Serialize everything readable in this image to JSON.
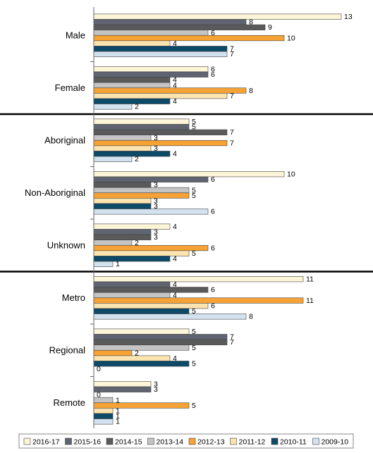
{
  "chart_data": {
    "type": "bar",
    "orientation": "horizontal",
    "xlim": [
      0,
      13
    ],
    "grid": false,
    "legend_position": "bottom",
    "categories": [
      "Male",
      "Female",
      "Aboriginal",
      "Non-Aboriginal",
      "Unknown",
      "Metro",
      "Regional",
      "Remote"
    ],
    "group_breaks_after": [
      "Female",
      "Unknown"
    ],
    "series": [
      {
        "name": "2016-17",
        "color": "#fdf5d8",
        "values": [
          13,
          6,
          5,
          10,
          4,
          11,
          5,
          3
        ]
      },
      {
        "name": "2015-16",
        "color": "#5f6470",
        "values": [
          8,
          6,
          5,
          6,
          3,
          4,
          7,
          3
        ]
      },
      {
        "name": "2014-15",
        "color": "#5a5a5a",
        "values": [
          9,
          4,
          7,
          3,
          3,
          6,
          7,
          0
        ]
      },
      {
        "name": "2013-14",
        "color": "#c4c4c4",
        "values": [
          6,
          4,
          3,
          5,
          2,
          4,
          5,
          1
        ]
      },
      {
        "name": "2012-13",
        "color": "#f6a235",
        "values": [
          10,
          8,
          7,
          5,
          6,
          11,
          2,
          5
        ]
      },
      {
        "name": "2011-12",
        "color": "#fce4b0",
        "values": [
          4,
          7,
          3,
          3,
          5,
          6,
          4,
          1
        ]
      },
      {
        "name": "2010-11",
        "color": "#0d4a68",
        "values": [
          7,
          4,
          4,
          3,
          4,
          5,
          5,
          1
        ]
      },
      {
        "name": "2009-10",
        "color": "#d3e2ef",
        "values": [
          7,
          2,
          2,
          6,
          1,
          8,
          0,
          1
        ]
      }
    ]
  }
}
